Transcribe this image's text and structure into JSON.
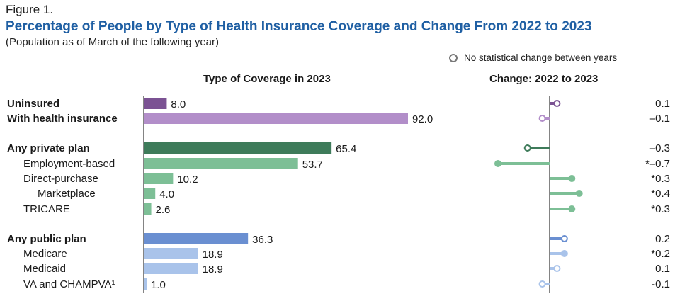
{
  "figure_label": "Figure 1.",
  "title": "Percentage of People by Type of Health Insurance Coverage and Change From 2022 to 2023",
  "subtitle": "(Population as of March of the following year)",
  "legend": {
    "no_change_label": "No statistical change between years"
  },
  "headers": {
    "left": "Type of Coverage in 2023",
    "right": "Change: 2022 to 2023"
  },
  "colors": {
    "purple_dark": "#7b5293",
    "purple_light": "#b28ec9",
    "green_dark": "#3e7b5a",
    "green_light": "#7dbf96",
    "blue_dark": "#6a8fd1",
    "blue_light": "#a9c3ea",
    "axis": "#333333"
  },
  "chart_data": [
    {
      "type": "bar",
      "title": "Type of Coverage in 2023",
      "categories": [
        "Uninsured",
        "With health insurance",
        "Any private plan",
        "Employment-based",
        "Direct-purchase",
        "Marketplace",
        "TRICARE",
        "Any public plan",
        "Medicare",
        "Medicaid",
        "VA and CHAMPVA¹"
      ],
      "values": [
        8.0,
        92.0,
        65.4,
        53.7,
        10.2,
        4.0,
        2.6,
        36.3,
        18.9,
        18.9,
        1.0
      ],
      "value_labels": [
        "8.0",
        "92.0",
        "65.4",
        "53.7",
        "10.2",
        "4.0",
        "2.6",
        "36.3",
        "18.9",
        "18.9",
        "1.0"
      ],
      "xlim": [
        0,
        100
      ]
    },
    {
      "type": "lollipop",
      "title": "Change: 2022 to 2023",
      "categories": [
        "Uninsured",
        "With health insurance",
        "Any private plan",
        "Employment-based",
        "Direct-purchase",
        "Marketplace",
        "TRICARE",
        "Any public plan",
        "Medicare",
        "Medicaid",
        "VA and CHAMPVA¹"
      ],
      "values": [
        0.1,
        -0.1,
        -0.3,
        -0.7,
        0.3,
        0.4,
        0.3,
        0.2,
        0.2,
        0.1,
        -0.1
      ],
      "value_labels": [
        "0.1",
        "–0.1",
        "–0.3",
        "*–0.7",
        "*0.3",
        "*0.4",
        "*0.3",
        "0.2",
        "*0.2",
        "0.1",
        "-0.1"
      ],
      "significant": [
        false,
        false,
        false,
        true,
        true,
        true,
        true,
        false,
        true,
        false,
        false
      ],
      "xlim": [
        -0.7,
        0.4
      ]
    }
  ],
  "rows": [
    {
      "label": "Uninsured",
      "bold": true,
      "indent": 0,
      "color": "purple_dark"
    },
    {
      "label": "With health insurance",
      "bold": true,
      "indent": 0,
      "color": "purple_light"
    },
    {
      "label": "Any private plan",
      "bold": true,
      "indent": 0,
      "color": "green_dark"
    },
    {
      "label": "Employment-based",
      "bold": false,
      "indent": 1,
      "color": "green_light"
    },
    {
      "label": "Direct-purchase",
      "bold": false,
      "indent": 1,
      "color": "green_light"
    },
    {
      "label": "Marketplace",
      "bold": false,
      "indent": 2,
      "color": "green_light"
    },
    {
      "label": "TRICARE",
      "bold": false,
      "indent": 1,
      "color": "green_light"
    },
    {
      "label": "Any public plan",
      "bold": true,
      "indent": 0,
      "color": "blue_dark"
    },
    {
      "label": "Medicare",
      "bold": false,
      "indent": 1,
      "color": "blue_light"
    },
    {
      "label": "Medicaid",
      "bold": false,
      "indent": 1,
      "color": "blue_light"
    },
    {
      "label": "VA and CHAMPVA¹",
      "bold": false,
      "indent": 1,
      "color": "blue_light"
    }
  ]
}
